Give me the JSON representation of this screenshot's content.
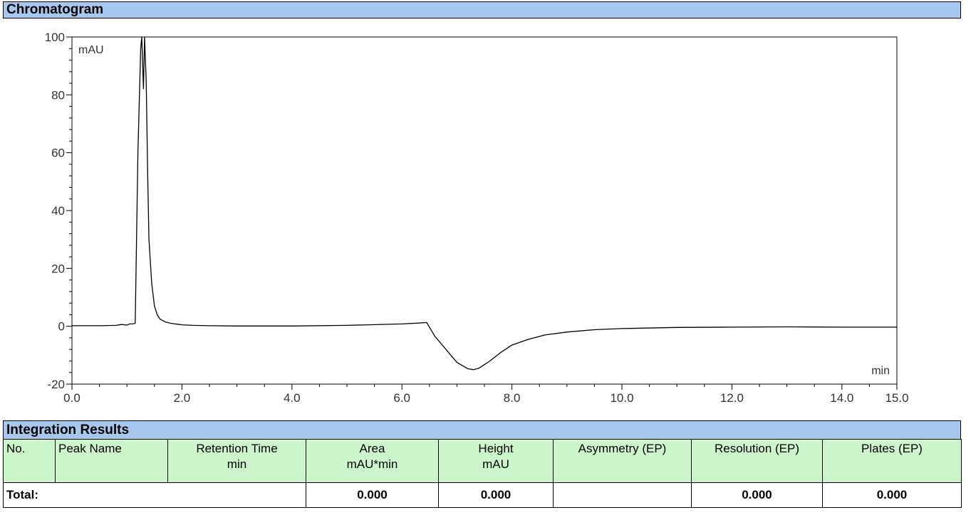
{
  "chromatogram": {
    "title": "Chromatogram"
  },
  "chart_data": {
    "type": "line",
    "title": "Chromatogram",
    "xlabel": "min",
    "ylabel": "mAU",
    "xlim": [
      0,
      15
    ],
    "ylim": [
      -20,
      100
    ],
    "x_ticks": [
      0,
      2,
      4,
      6,
      8,
      10,
      12,
      14,
      15
    ],
    "x_tick_labels": [
      "0.0",
      "2.0",
      "4.0",
      "6.0",
      "8.0",
      "10.0",
      "12.0",
      "14.0",
      "15.0"
    ],
    "y_ticks": [
      -20,
      0,
      20,
      40,
      60,
      80,
      100
    ],
    "y_tick_labels": [
      "-20",
      "0",
      "20",
      "40",
      "60",
      "80",
      "100"
    ],
    "grid": false,
    "series": [
      {
        "x": [
          0.0,
          0.5,
          0.8,
          0.9,
          1.0,
          1.05,
          1.1,
          1.15,
          1.2,
          1.25,
          1.27,
          1.3,
          1.32,
          1.35,
          1.38,
          1.4,
          1.45,
          1.5,
          1.55,
          1.6,
          1.7,
          1.8,
          2.0,
          2.2,
          2.5,
          3.0,
          4.0,
          5.0,
          6.0,
          6.3,
          6.45,
          6.6,
          6.8,
          7.0,
          7.2,
          7.3,
          7.4,
          7.6,
          7.8,
          8.0,
          8.3,
          8.6,
          9.0,
          9.5,
          10.0,
          11.0,
          12.0,
          13.0,
          14.0,
          15.0
        ],
        "y": [
          0.2,
          0.2,
          0.3,
          0.6,
          0.4,
          0.8,
          0.8,
          1.0,
          60.0,
          96.0,
          100.0,
          82.0,
          100.0,
          85.0,
          50.0,
          30.0,
          15.0,
          7.0,
          4.0,
          2.5,
          1.5,
          1.0,
          0.5,
          0.3,
          0.2,
          0.1,
          0.1,
          0.3,
          0.8,
          1.1,
          1.3,
          -3.5,
          -8.0,
          -12.5,
          -14.7,
          -15.0,
          -14.5,
          -12.0,
          -9.0,
          -6.5,
          -4.5,
          -3.0,
          -2.0,
          -1.2,
          -0.8,
          -0.4,
          -0.3,
          -0.2,
          -0.3,
          -0.3
        ]
      }
    ]
  },
  "integration": {
    "title": "Integration Results",
    "headers": {
      "no": "No.",
      "peak_name": "Peak Name",
      "retention_time": "Retention Time\nmin",
      "area": "Area\nmAU*min",
      "height": "Height\nmAU",
      "asymmetry": "Asymmetry (EP)",
      "resolution": "Resolution (EP)",
      "plates": "Plates (EP)"
    },
    "total": {
      "label": "Total:",
      "area": "0.000",
      "height": "0.000",
      "resolution": "0.000",
      "plates": "0.000"
    }
  }
}
